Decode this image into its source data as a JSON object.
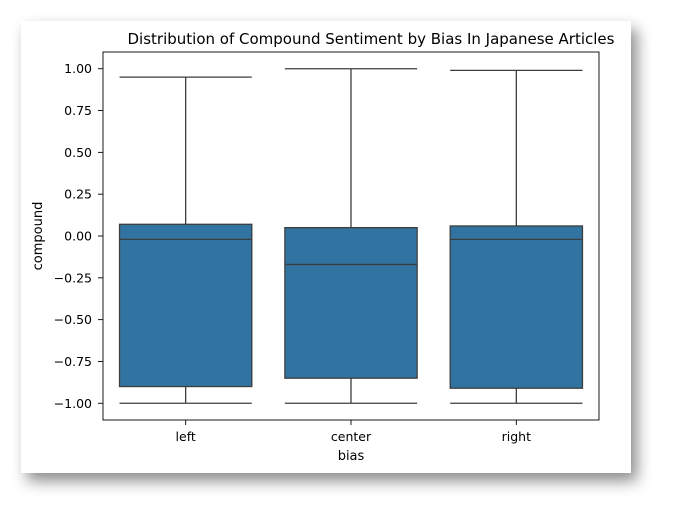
{
  "chart_data": {
    "type": "box",
    "title": "Distribution of Compound Sentiment by Bias In Japanese Articles",
    "xlabel": "bias",
    "ylabel": "compound",
    "categories": [
      "left",
      "center",
      "right"
    ],
    "yticks": [
      "1.00",
      "0.75",
      "0.50",
      "0.25",
      "0.00",
      "−0.25",
      "−0.50",
      "−0.75",
      "−1.00"
    ],
    "ytick_values": [
      1.0,
      0.75,
      0.5,
      0.25,
      0.0,
      -0.25,
      -0.5,
      -0.75,
      -1.0
    ],
    "ylim": [
      -1.1,
      1.1
    ],
    "grid": false,
    "box_color": "#3274a1",
    "line_color": "#3d3d3d",
    "boxes": [
      {
        "category": "left",
        "whisker_low": -1.0,
        "q1": -0.9,
        "median": -0.02,
        "q3": 0.07,
        "whisker_high": 0.95
      },
      {
        "category": "center",
        "whisker_low": -1.0,
        "q1": -0.85,
        "median": -0.17,
        "q3": 0.05,
        "whisker_high": 1.0
      },
      {
        "category": "right",
        "whisker_low": -1.0,
        "q1": -0.91,
        "median": -0.02,
        "q3": 0.06,
        "whisker_high": 0.99
      }
    ]
  }
}
